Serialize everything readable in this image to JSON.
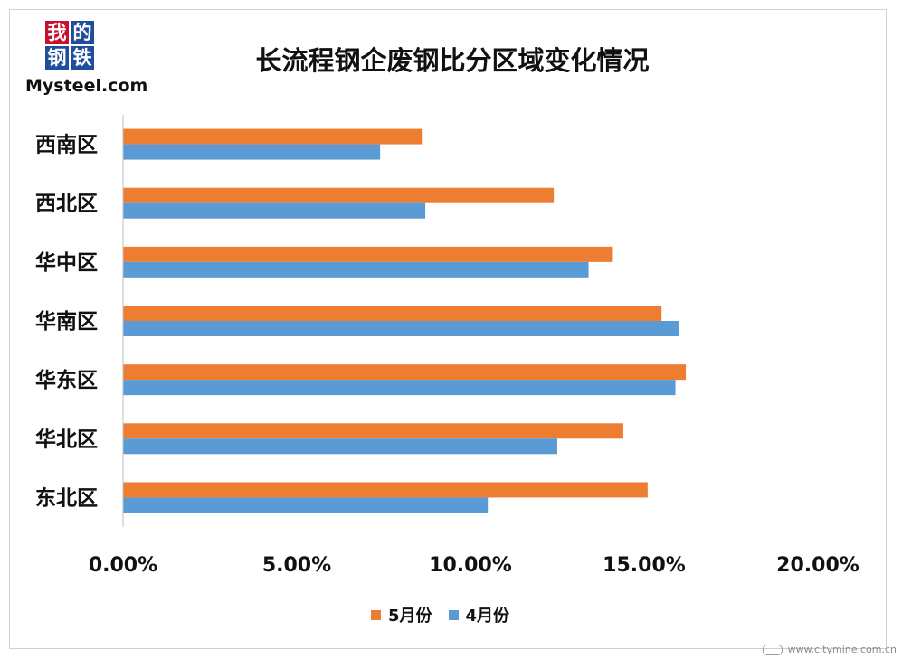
{
  "logo": {
    "chars": [
      "我",
      "的",
      "钢",
      "铁"
    ],
    "text": "Mysteel.com",
    "colors": [
      "#c8102e",
      "#1f4e9c",
      "#1f4e9c",
      "#1f4e9c"
    ]
  },
  "watermark": {
    "text": "www.citymine.com.cn"
  },
  "colors": {
    "may": "#ed7d31",
    "april": "#5b9bd5",
    "axis": "#bfbfbf"
  },
  "chart_data": {
    "type": "bar",
    "orientation": "horizontal",
    "title": "长流程钢企废钢比分区域变化情况",
    "categories": [
      "西南区",
      "西北区",
      "华中区",
      "华南区",
      "华东区",
      "华北区",
      "东北区"
    ],
    "series": [
      {
        "name": "5月份",
        "values": [
          8.6,
          12.4,
          14.1,
          15.5,
          16.2,
          14.4,
          15.1
        ]
      },
      {
        "name": "4月份",
        "values": [
          7.4,
          8.7,
          13.4,
          16.0,
          15.9,
          12.5,
          10.5
        ]
      }
    ],
    "xlim": [
      0,
      20
    ],
    "xticks": [
      "0.00%",
      "5.00%",
      "10.00%",
      "15.00%",
      "20.00%"
    ],
    "xlabel": "",
    "ylabel": "",
    "grid": false,
    "legend": "bottom"
  }
}
